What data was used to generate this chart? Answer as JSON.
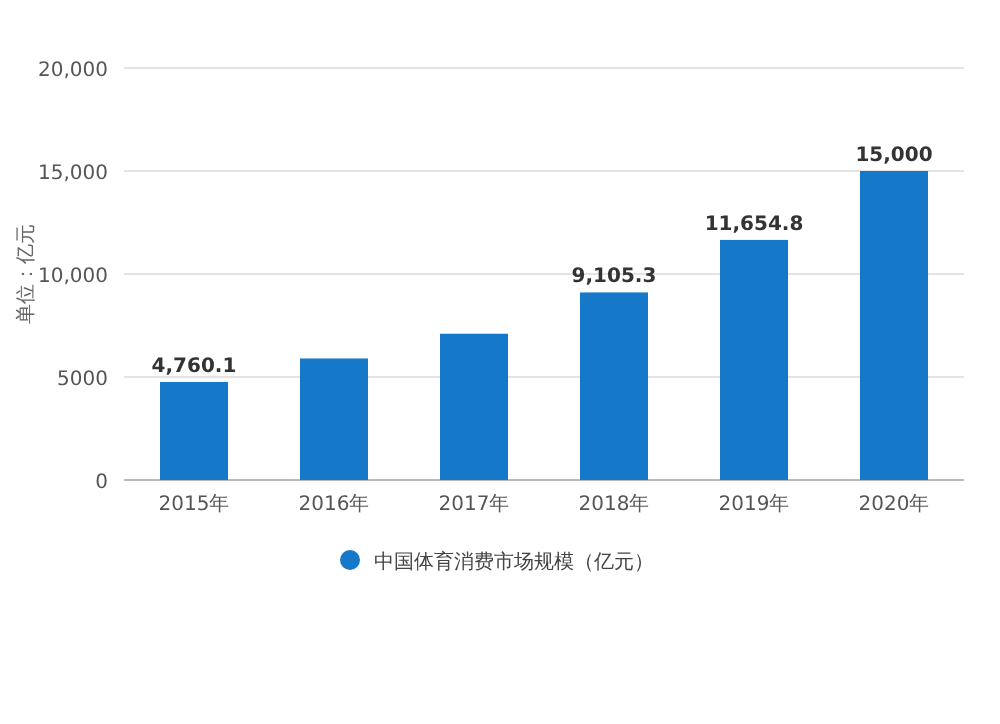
{
  "chart_data": {
    "type": "bar",
    "ylabel": "单位：亿元",
    "categories": [
      "2015年",
      "2016年",
      "2017年",
      "2018年",
      "2019年",
      "2020年"
    ],
    "series": [
      {
        "name": "中国体育消费市场规模（亿元）",
        "color": "#1578c8",
        "values": [
          4760.1,
          5900,
          7100,
          9105.3,
          11654.8,
          15000
        ],
        "value_labels": [
          "4,760.1",
          null,
          null,
          "9,105.3",
          "11,654.8",
          "15,000"
        ]
      }
    ],
    "ylim": [
      0,
      20000
    ],
    "yticks": [
      0,
      {
        "value": 5000,
        "label": "5000"
      },
      {
        "value": 10000,
        "label": "10,000"
      },
      {
        "value": 15000,
        "label": "15,000"
      },
      {
        "value": 20000,
        "label": "20,000"
      }
    ],
    "grid": "y",
    "legend": "bottom",
    "marker": "circle"
  }
}
